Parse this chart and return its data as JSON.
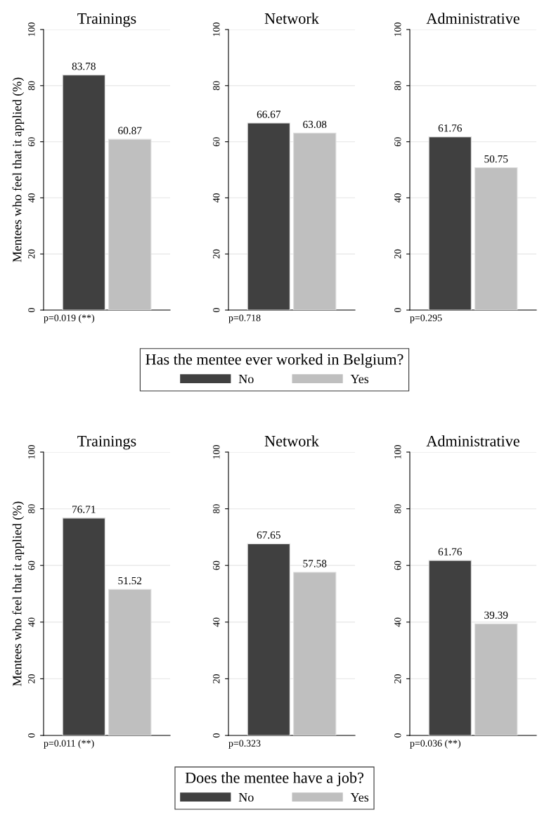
{
  "chart_data": [
    {
      "type": "bar",
      "title": "Trainings",
      "ylabel": "Mentees who feel that it applied (%)",
      "categories": [
        null
      ],
      "series": [
        {
          "color": "#404040",
          "values": [
            83.78
          ]
        },
        {
          "color": "#bfbfbf",
          "values": [
            60.87
          ]
        }
      ],
      "ylim": [
        0,
        100
      ],
      "yticks": [
        0,
        20,
        40,
        60,
        80,
        100
      ],
      "grid": "y",
      "data_labels": true,
      "annotations": [
        "p=0.019 (**)"
      ]
    },
    {
      "type": "bar",
      "title": "Network",
      "categories": [
        null
      ],
      "series": [
        {
          "name": "No",
          "color": "#404040",
          "values": [
            66.67
          ]
        },
        {
          "name": "Yes",
          "color": "#bfbfbf",
          "values": [
            63.08
          ]
        }
      ],
      "ylim": [
        0,
        100
      ],
      "yticks": [
        0,
        20,
        40,
        60,
        80,
        100
      ],
      "grid": "y",
      "data_labels": true,
      "annotations": [
        "p=0.718"
      ],
      "legend": "bottom",
      "legend_title": "Has the mentee ever worked in Belgium?"
    },
    {
      "type": "bar",
      "title": "Administrative",
      "categories": [
        null
      ],
      "series": [
        {
          "color": "#404040",
          "values": [
            61.76
          ]
        },
        {
          "color": "#bfbfbf",
          "values": [
            50.75
          ]
        }
      ],
      "ylim": [
        0,
        100
      ],
      "yticks": [
        0,
        20,
        40,
        60,
        80,
        100
      ],
      "grid": "y",
      "data_labels": true,
      "annotations": [
        "p=0.295"
      ]
    },
    {
      "type": "bar",
      "title": "Trainings",
      "ylabel": "Mentees who feel that it applied (%)",
      "categories": [
        null
      ],
      "series": [
        {
          "color": "#404040",
          "values": [
            76.71
          ]
        },
        {
          "color": "#bfbfbf",
          "values": [
            51.52
          ]
        }
      ],
      "ylim": [
        0,
        100
      ],
      "yticks": [
        0,
        20,
        40,
        60,
        80,
        100
      ],
      "grid": "y",
      "data_labels": true,
      "annotations": [
        "p=0.011 (**)"
      ]
    },
    {
      "type": "bar",
      "title": "Network",
      "categories": [
        null
      ],
      "series": [
        {
          "name": "No",
          "color": "#404040",
          "values": [
            67.65
          ]
        },
        {
          "name": "Yes",
          "color": "#bfbfbf",
          "values": [
            57.58
          ]
        }
      ],
      "ylim": [
        0,
        100
      ],
      "yticks": [
        0,
        20,
        40,
        60,
        80,
        100
      ],
      "grid": "y",
      "data_labels": true,
      "annotations": [
        "p=0.323"
      ],
      "legend": "bottom",
      "legend_title": "Does the mentee have a job?"
    },
    {
      "type": "bar",
      "title": "Administrative",
      "categories": [
        null
      ],
      "series": [
        {
          "color": "#404040",
          "values": [
            61.76
          ]
        },
        {
          "color": "#bfbfbf",
          "values": [
            39.39
          ]
        }
      ],
      "ylim": [
        0,
        100
      ],
      "yticks": [
        0,
        20,
        40,
        60,
        80,
        100
      ],
      "grid": "y",
      "data_labels": true,
      "annotations": [
        "p=0.036 (**)"
      ]
    }
  ]
}
